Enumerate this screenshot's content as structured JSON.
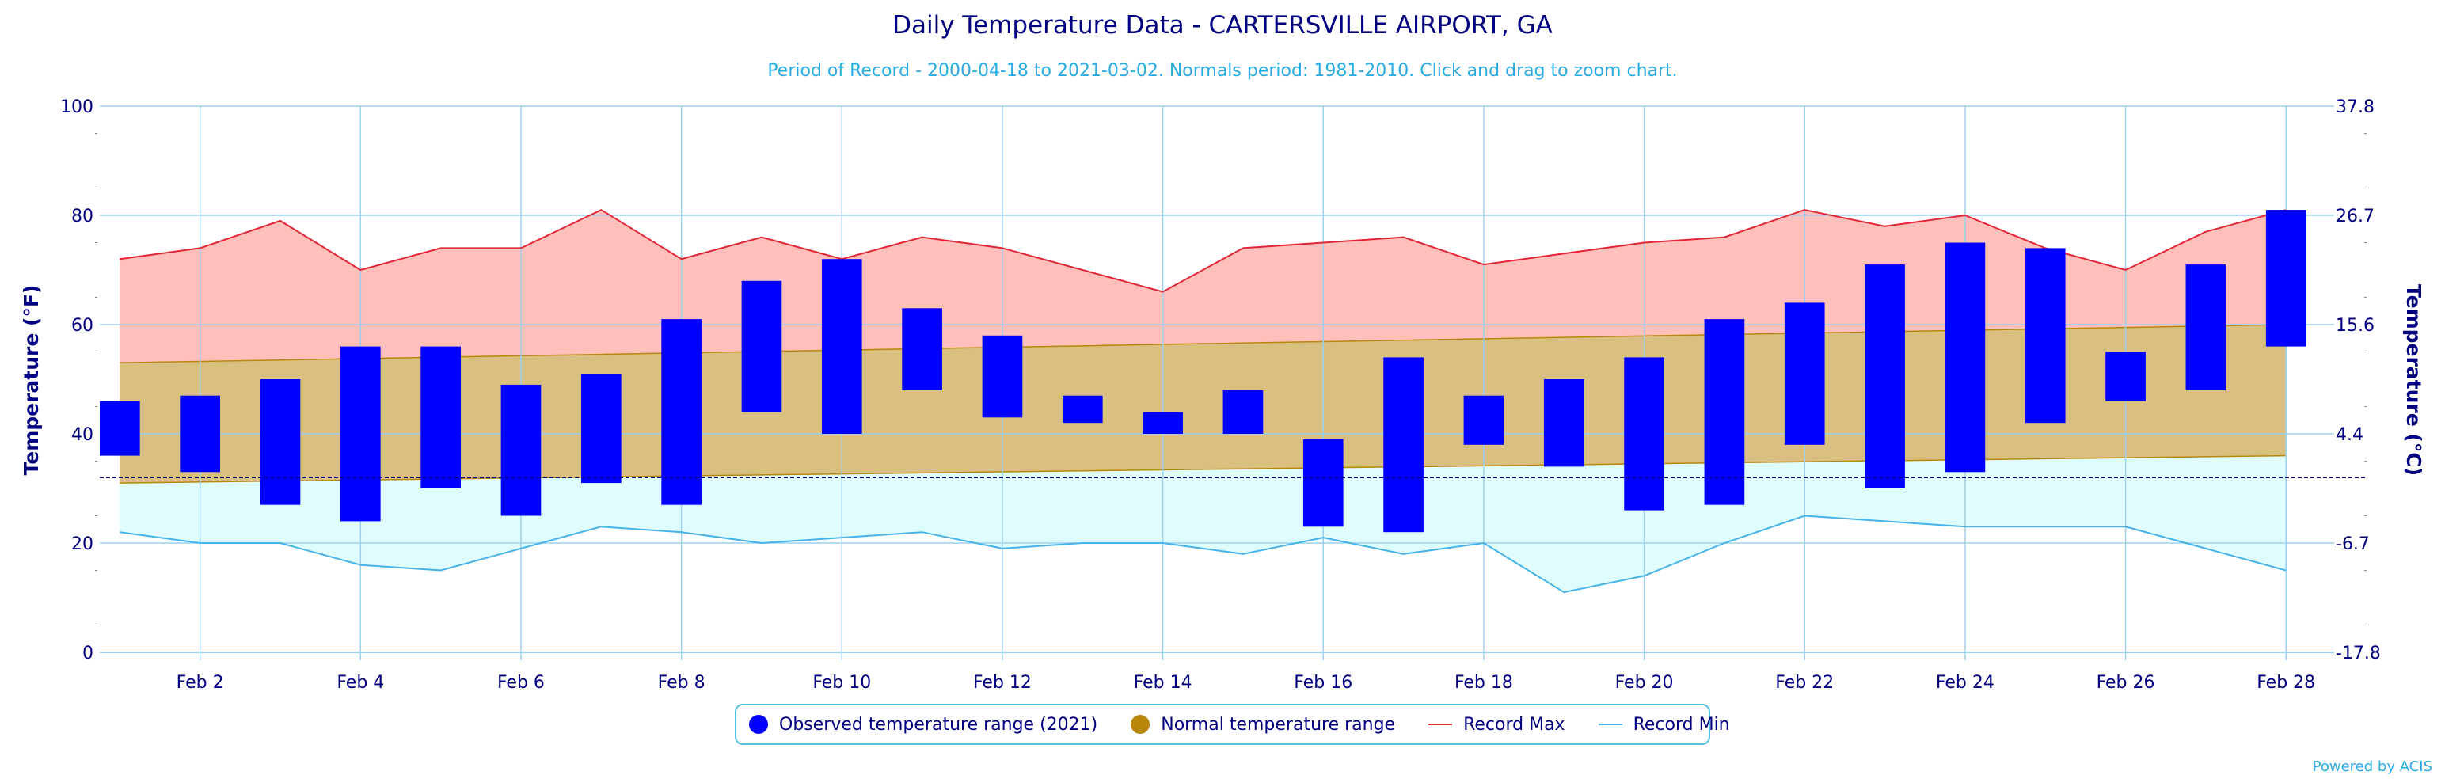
{
  "chart_data": {
    "type": "bar",
    "title": "Daily Temperature Data - CARTERSVILLE AIRPORT, GA",
    "subtitle": "Period of Record - 2000-04-18 to 2021-03-02. Normals period: 1981-2010. Click and drag to zoom chart.",
    "ylabel": "Temperature (°F)",
    "y2label": "Temperature (°C)",
    "ylim": [
      0,
      100
    ],
    "yticks": [
      0,
      20,
      40,
      60,
      80,
      100
    ],
    "y2ticks": [
      "-17.8",
      "-6.7",
      "4.4",
      "15.6",
      "26.7",
      "37.8"
    ],
    "freezing_line_f": 32,
    "xlim": [
      0.75,
      28.6
    ],
    "x": [
      1,
      2,
      3,
      4,
      5,
      6,
      7,
      8,
      9,
      10,
      11,
      12,
      13,
      14,
      15,
      16,
      17,
      18,
      19,
      20,
      21,
      22,
      23,
      24,
      25,
      26,
      27,
      28
    ],
    "xtick_days": [
      2,
      4,
      6,
      8,
      10,
      12,
      14,
      16,
      18,
      20,
      22,
      24,
      26,
      28
    ],
    "xtick_labels": [
      "Feb 2",
      "Feb 4",
      "Feb 6",
      "Feb 8",
      "Feb 10",
      "Feb 12",
      "Feb 14",
      "Feb 16",
      "Feb 18",
      "Feb 20",
      "Feb 22",
      "Feb 24",
      "Feb 26",
      "Feb 28"
    ],
    "series": [
      {
        "name": "Observed temperature range (2021)",
        "low": [
          36,
          33,
          27,
          24,
          30,
          25,
          31,
          27,
          44,
          40,
          48,
          43,
          42,
          40,
          40,
          23,
          22,
          38,
          34,
          26,
          27,
          38,
          30,
          33,
          42,
          46,
          48,
          56
        ],
        "high": [
          46,
          47,
          50,
          56,
          56,
          49,
          51,
          61,
          68,
          72,
          63,
          58,
          47,
          44,
          48,
          39,
          54,
          47,
          50,
          54,
          61,
          64,
          71,
          75,
          74,
          55,
          71,
          81
        ]
      },
      {
        "name": "Normal temperature range",
        "low_start": 31,
        "low_end": 36,
        "high_start": 53,
        "high_end": 60
      },
      {
        "name": "Record Max",
        "values": [
          72,
          74,
          79,
          70,
          74,
          74,
          81,
          72,
          76,
          72,
          76,
          74,
          70,
          66,
          74,
          75,
          76,
          71,
          73,
          75,
          76,
          81,
          78,
          80,
          74,
          70,
          77,
          81
        ]
      },
      {
        "name": "Record Min",
        "values": [
          22,
          20,
          20,
          16,
          15,
          19,
          23,
          22,
          20,
          21,
          22,
          19,
          20,
          20,
          18,
          21,
          18,
          20,
          11,
          14,
          20,
          25,
          24,
          23,
          23,
          23,
          19,
          15
        ]
      }
    ],
    "grid": true,
    "legend_position": "bottom-center"
  },
  "colors": {
    "observed": "#0000ff",
    "normal_fill": "#d9bf80",
    "normal_dot": "#b8860b",
    "record_max_line": "#e32636",
    "record_max_fill": "#ffbfbb",
    "record_min_line": "#45b2e8",
    "record_min_fill": "#e0fdfd",
    "text": "#000080",
    "subtitle": "#2aabe2",
    "grid": "#9cd0ee"
  },
  "legend": {
    "observed": "Observed temperature range (2021)",
    "normal": "Normal temperature range",
    "max": "Record Max",
    "min": "Record Min"
  },
  "footer": {
    "powered": "Powered by ACIS"
  }
}
